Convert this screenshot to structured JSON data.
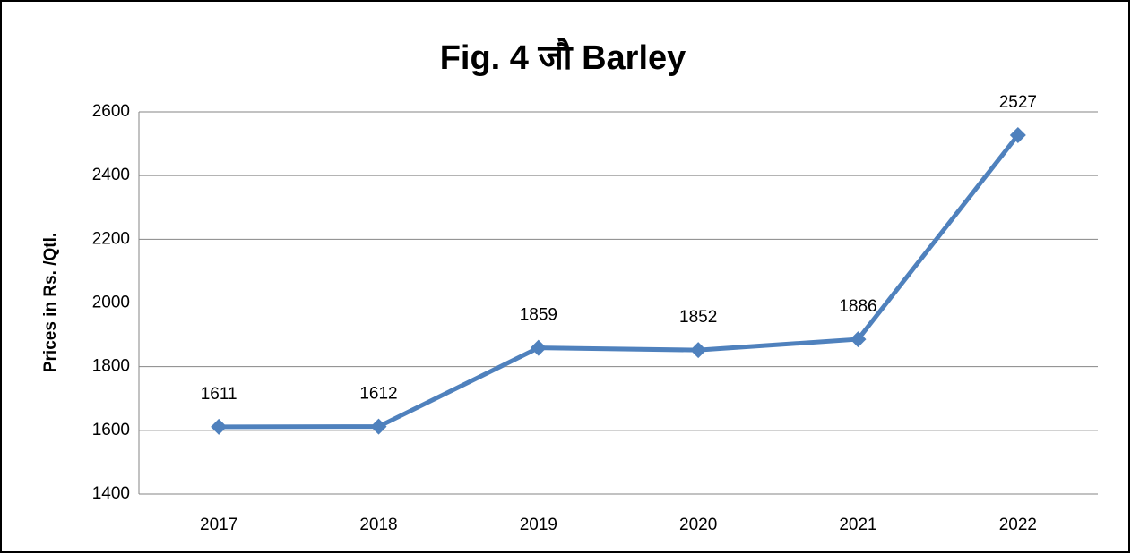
{
  "chart_data": {
    "type": "line",
    "title": "Fig. 4 जौ Barley",
    "y_label": "Prices in Rs. /Qtl.",
    "categories": [
      "2017",
      "2018",
      "2019",
      "2020",
      "2021",
      "2022"
    ],
    "values": [
      1611,
      1612,
      1859,
      1852,
      1886,
      2527
    ],
    "color": "#4f81bd",
    "ylim": [
      1400,
      2600
    ],
    "yticks": [
      1400,
      1600,
      1800,
      2000,
      2200,
      2400,
      2600
    ],
    "grid": true
  }
}
